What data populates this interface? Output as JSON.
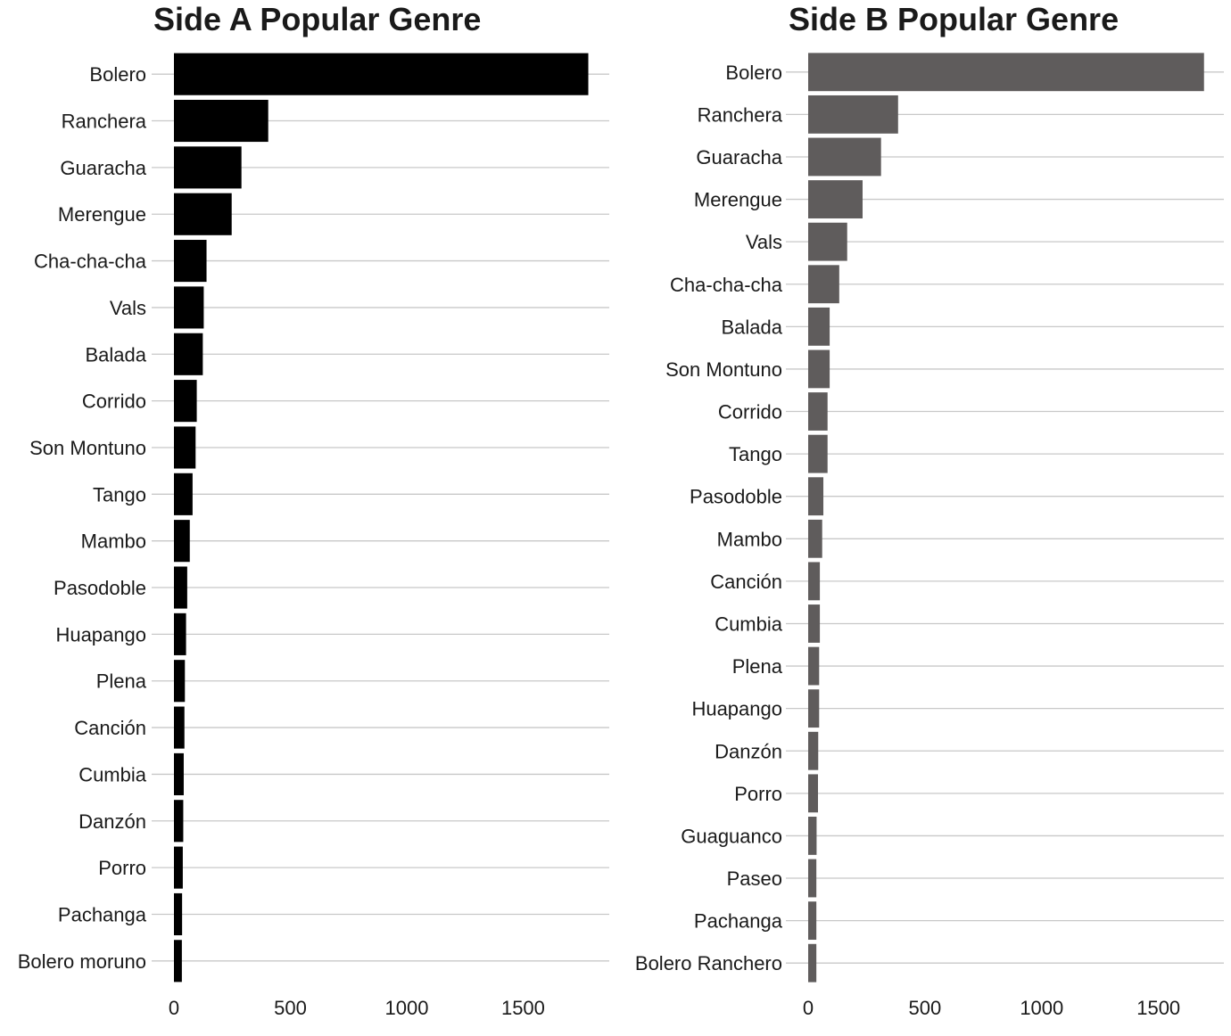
{
  "chart_data": [
    {
      "type": "bar",
      "orientation": "horizontal",
      "title": "Side A Popular Genre",
      "xlabel": "",
      "ylabel": "",
      "xlim": [
        0,
        1870
      ],
      "xticks": [
        0,
        500,
        1000,
        1500
      ],
      "grid": "horizontal",
      "bar_color": "#000000",
      "categories": [
        "Bolero",
        "Ranchera",
        "Guaracha",
        "Merengue",
        "Cha-cha-cha",
        "Vals",
        "Balada",
        "Corrido",
        "Son Montuno",
        "Tango",
        "Mambo",
        "Pasodoble",
        "Huapango",
        "Plena",
        "Canción",
        "Cumbia",
        "Danzón",
        "Porro",
        "Pachanga",
        "Bolero moruno"
      ],
      "values": [
        1780,
        405,
        290,
        248,
        140,
        128,
        124,
        98,
        93,
        80,
        68,
        57,
        52,
        47,
        45,
        42,
        40,
        38,
        35,
        34
      ]
    },
    {
      "type": "bar",
      "orientation": "horizontal",
      "title": "Side B Popular Genre",
      "xlabel": "",
      "ylabel": "",
      "xlim": [
        0,
        1780
      ],
      "xticks": [
        0,
        500,
        1000,
        1500
      ],
      "grid": "horizontal",
      "bar_color": "#5f5c5c",
      "categories": [
        "Bolero",
        "Ranchera",
        "Guaracha",
        "Merengue",
        "Vals",
        "Cha-cha-cha",
        "Balada",
        "Son Montuno",
        "Corrido",
        "Tango",
        "Pasodoble",
        "Mambo",
        "Canción",
        "Cumbia",
        "Plena",
        "Huapango",
        "Danzón",
        "Porro",
        "Guaguanco",
        "Paseo",
        "Pachanga",
        "Bolero Ranchero"
      ],
      "values": [
        1695,
        385,
        312,
        233,
        167,
        133,
        92,
        92,
        83,
        83,
        65,
        60,
        50,
        50,
        47,
        47,
        43,
        42,
        36,
        35,
        35,
        35
      ]
    }
  ]
}
